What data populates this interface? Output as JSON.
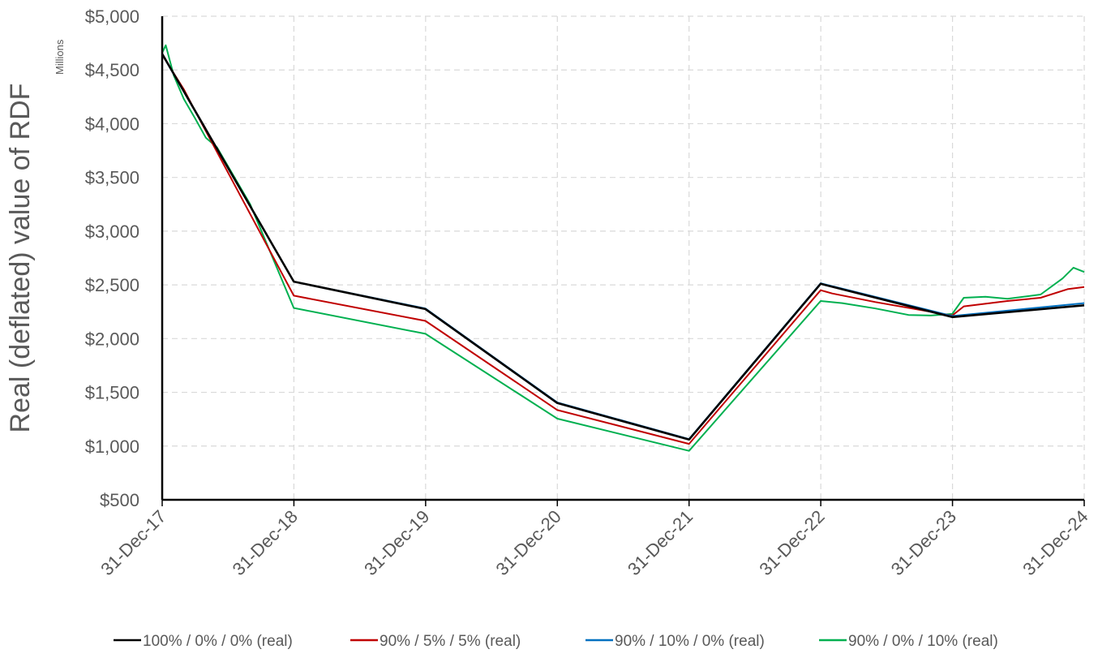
{
  "chart_data": {
    "type": "line",
    "title": "",
    "xlabel": "",
    "ylabel": "Real (deflated) value of RDF",
    "y_units": "Millions",
    "x_ticks": [
      "31-Dec-17",
      "31-Dec-18",
      "31-Dec-19",
      "31-Dec-20",
      "31-Dec-21",
      "31-Dec-22",
      "31-Dec-23",
      "31-Dec-24"
    ],
    "y_ticks": [
      "$5,000",
      "$4,500",
      "$4,000",
      "$3,500",
      "$3,000",
      "$2,500",
      "$2,000",
      "$1,500",
      "$1,000",
      "$500"
    ],
    "ylim": [
      500,
      5000
    ],
    "xlim": [
      "2017-12-31",
      "2024-12-31"
    ],
    "grid": true,
    "legend_position": "bottom",
    "series": [
      {
        "name": "100% / 0% / 0% (real)",
        "color": "#000000",
        "points": [
          [
            "2017-12-31",
            4650
          ],
          [
            "2018-12-31",
            2530
          ],
          [
            "2019-12-31",
            2275
          ],
          [
            "2020-12-31",
            1400
          ],
          [
            "2021-12-31",
            1060
          ],
          [
            "2022-12-31",
            2510
          ],
          [
            "2023-12-31",
            2200
          ],
          [
            "2024-12-31",
            2310
          ]
        ]
      },
      {
        "name": "90% / 5% / 5% (real)",
        "color": "#C00000",
        "points": [
          [
            "2017-12-31",
            4640
          ],
          [
            "2018-03-01",
            4320
          ],
          [
            "2018-04-01",
            4120
          ],
          [
            "2018-12-31",
            2400
          ],
          [
            "2019-12-31",
            2165
          ],
          [
            "2020-12-31",
            1335
          ],
          [
            "2021-12-31",
            1020
          ],
          [
            "2022-12-31",
            2450
          ],
          [
            "2023-02-01",
            2420
          ],
          [
            "2023-06-01",
            2340
          ],
          [
            "2023-12-31",
            2215
          ],
          [
            "2024-02-01",
            2300
          ],
          [
            "2024-06-01",
            2350
          ],
          [
            "2024-09-01",
            2380
          ],
          [
            "2024-11-15",
            2460
          ],
          [
            "2024-12-31",
            2480
          ]
        ]
      },
      {
        "name": "90% / 10% / 0% (real)",
        "color": "#0070C0",
        "points": [
          [
            "2017-12-31",
            4645
          ],
          [
            "2018-12-31",
            2530
          ],
          [
            "2019-12-31",
            2280
          ],
          [
            "2020-12-31",
            1405
          ],
          [
            "2021-12-31",
            1065
          ],
          [
            "2022-12-31",
            2515
          ],
          [
            "2023-12-31",
            2210
          ],
          [
            "2024-12-31",
            2330
          ]
        ]
      },
      {
        "name": "90% / 0% / 10% (real)",
        "color": "#00B050",
        "points": [
          [
            "2017-12-31",
            4660
          ],
          [
            "2018-01-10",
            4730
          ],
          [
            "2018-02-01",
            4450
          ],
          [
            "2018-03-01",
            4230
          ],
          [
            "2018-04-01",
            4050
          ],
          [
            "2018-05-01",
            3870
          ],
          [
            "2018-06-01",
            3780
          ],
          [
            "2018-09-01",
            3250
          ],
          [
            "2018-12-31",
            2285
          ],
          [
            "2019-12-31",
            2045
          ],
          [
            "2020-12-31",
            1255
          ],
          [
            "2021-12-31",
            955
          ],
          [
            "2022-12-31",
            2350
          ],
          [
            "2023-03-01",
            2330
          ],
          [
            "2023-06-01",
            2280
          ],
          [
            "2023-09-01",
            2220
          ],
          [
            "2023-11-01",
            2215
          ],
          [
            "2023-12-31",
            2230
          ],
          [
            "2024-02-01",
            2380
          ],
          [
            "2024-04-01",
            2390
          ],
          [
            "2024-06-01",
            2370
          ],
          [
            "2024-09-01",
            2410
          ],
          [
            "2024-11-01",
            2560
          ],
          [
            "2024-12-01",
            2660
          ],
          [
            "2024-12-31",
            2620
          ]
        ]
      }
    ]
  }
}
